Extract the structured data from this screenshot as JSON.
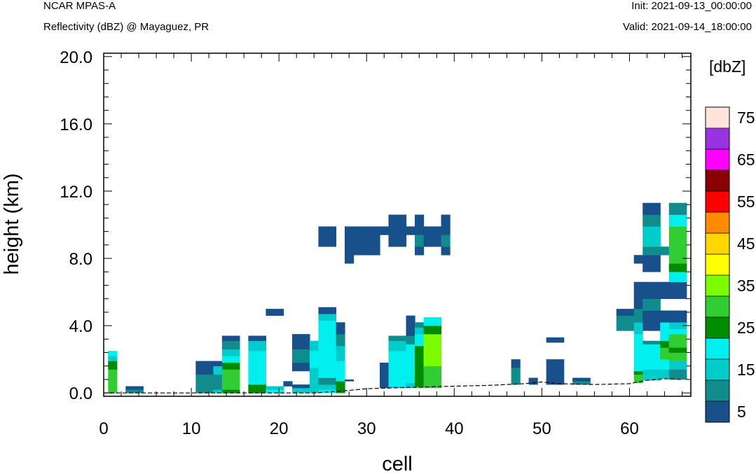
{
  "header": {
    "title": "NCAR MPAS-A",
    "subtitle": "Reflectivity (dBZ) @ Mayaguez, PR",
    "init": "Init: 2021-09-13_00:00:00",
    "valid": "Valid: 2021-09-14_18:00:00"
  },
  "colors": {
    "5": "#18508c",
    "10": "#108c8c",
    "15": "#00cccc",
    "20": "#00f0f0",
    "25": "#008c00",
    "30": "#32cd32",
    "35": "#7cfc00",
    "40": "#ffff00",
    "45": "#ffd700",
    "50": "#ff8c00",
    "55": "#ff0000",
    "60": "#8b0000",
    "65": "#ff00ff",
    "70": "#9932e0",
    "75": "#ffe4dc"
  },
  "chart_data": {
    "type": "heatmap",
    "xlabel": "cell",
    "ylabel": "height (km)",
    "xlim": [
      0,
      67
    ],
    "ylim": [
      -0.2,
      20.2
    ],
    "xticks": [
      0,
      10,
      20,
      30,
      40,
      50,
      60
    ],
    "yticks": [
      0.0,
      4.0,
      8.0,
      12.0,
      16.0,
      20.0
    ],
    "ytick_labels": [
      "0.0",
      "4.0",
      "8.0",
      "12.0",
      "16.0",
      "20.0"
    ],
    "colorbar": {
      "title": "[dbZ]",
      "levels": [
        5,
        10,
        15,
        20,
        25,
        30,
        35,
        40,
        45,
        50,
        55,
        60,
        65,
        70,
        75
      ],
      "labels": [
        "5",
        "15",
        "25",
        "35",
        "45",
        "55",
        "65",
        "75"
      ]
    },
    "terrain": [
      [
        0,
        0
      ],
      [
        24,
        0
      ],
      [
        28,
        0.15
      ],
      [
        30,
        0.25
      ],
      [
        36,
        0.35
      ],
      [
        40,
        0.4
      ],
      [
        44,
        0.45
      ],
      [
        48,
        0.55
      ],
      [
        50,
        0.65
      ],
      [
        52,
        0.55
      ],
      [
        56,
        0.5
      ],
      [
        60,
        0.55
      ],
      [
        62,
        0.75
      ],
      [
        64,
        0.85
      ],
      [
        66,
        0.8
      ]
    ],
    "columns": [
      {
        "x": 1,
        "bins": [
          [
            0,
            1.4,
            30
          ],
          [
            1.4,
            1.9,
            25
          ],
          [
            1.9,
            2.2,
            15
          ],
          [
            2.2,
            2.5,
            20
          ]
        ]
      },
      {
        "x": 3,
        "bins": [
          [
            0,
            0.2,
            10
          ],
          [
            0.2,
            0.4,
            5
          ]
        ]
      },
      {
        "x": 4,
        "bins": [
          [
            0,
            0.2,
            10
          ],
          [
            0.2,
            0.4,
            5
          ]
        ]
      },
      {
        "x": 11,
        "bins": [
          [
            0,
            1.1,
            10
          ],
          [
            1.1,
            1.9,
            5
          ]
        ]
      },
      {
        "x": 12,
        "bins": [
          [
            0,
            1.1,
            10
          ],
          [
            1.1,
            1.9,
            5
          ]
        ]
      },
      {
        "x": 13,
        "bins": [
          [
            0,
            0.2,
            15
          ],
          [
            0.2,
            1.1,
            10
          ],
          [
            1.1,
            1.6,
            15
          ],
          [
            1.6,
            1.9,
            5
          ]
        ]
      },
      {
        "x": 14,
        "bins": [
          [
            0,
            0.2,
            25
          ],
          [
            0.2,
            1.4,
            30
          ],
          [
            1.4,
            1.8,
            25
          ],
          [
            1.8,
            2.2,
            20
          ],
          [
            2.2,
            2.6,
            15
          ],
          [
            2.6,
            3.1,
            10
          ],
          [
            3.1,
            3.4,
            5
          ]
        ]
      },
      {
        "x": 15,
        "bins": [
          [
            0,
            0.2,
            25
          ],
          [
            0.2,
            1.4,
            30
          ],
          [
            1.4,
            1.8,
            25
          ],
          [
            1.8,
            2.2,
            20
          ],
          [
            2.2,
            2.6,
            15
          ],
          [
            2.6,
            3.1,
            10
          ],
          [
            3.1,
            3.4,
            5
          ]
        ]
      },
      {
        "x": 17,
        "bins": [
          [
            0,
            0.5,
            25
          ],
          [
            0.5,
            2.5,
            20
          ],
          [
            2.5,
            3.1,
            15
          ],
          [
            3.1,
            3.4,
            5
          ]
        ]
      },
      {
        "x": 18,
        "bins": [
          [
            0,
            0.5,
            25
          ],
          [
            0.5,
            2.5,
            20
          ],
          [
            2.5,
            3.1,
            15
          ],
          [
            3.1,
            3.4,
            5
          ]
        ]
      },
      {
        "x": 19,
        "bins": [
          [
            0,
            0.2,
            20
          ],
          [
            0.2,
            0.4,
            15
          ],
          [
            4.6,
            5.0,
            5
          ]
        ]
      },
      {
        "x": 20,
        "bins": [
          [
            0,
            0.2,
            20
          ],
          [
            0.2,
            0.4,
            15
          ],
          [
            4.6,
            5.0,
            5
          ]
        ]
      },
      {
        "x": 21,
        "bins": [
          [
            0.4,
            0.7,
            5
          ]
        ]
      },
      {
        "x": 22,
        "bins": [
          [
            0,
            0.3,
            15
          ],
          [
            0.3,
            0.5,
            5
          ],
          [
            1.3,
            1.8,
            5
          ],
          [
            1.8,
            2.6,
            10
          ],
          [
            2.6,
            3.5,
            5
          ]
        ]
      },
      {
        "x": 23,
        "bins": [
          [
            0,
            0.3,
            15
          ],
          [
            0.3,
            0.5,
            5
          ],
          [
            1.3,
            1.8,
            5
          ],
          [
            1.8,
            2.6,
            10
          ],
          [
            2.6,
            3.5,
            5
          ]
        ]
      },
      {
        "x": 24,
        "bins": [
          [
            0,
            1.5,
            15
          ],
          [
            1.5,
            2.5,
            20
          ],
          [
            2.5,
            3.1,
            15
          ]
        ]
      },
      {
        "x": 25,
        "bins": [
          [
            0,
            0.2,
            20
          ],
          [
            0.2,
            0.5,
            15
          ],
          [
            0.5,
            0.9,
            10
          ],
          [
            0.9,
            4.3,
            20
          ],
          [
            4.3,
            4.7,
            15
          ],
          [
            4.7,
            5.1,
            5
          ],
          [
            8.7,
            9.9,
            5
          ]
        ]
      },
      {
        "x": 26,
        "bins": [
          [
            0,
            0.2,
            20
          ],
          [
            0.2,
            0.5,
            15
          ],
          [
            0.5,
            0.9,
            10
          ],
          [
            0.9,
            4.3,
            20
          ],
          [
            4.3,
            4.7,
            15
          ],
          [
            4.7,
            5.1,
            5
          ],
          [
            8.7,
            9.9,
            5
          ]
        ]
      },
      {
        "x": 27,
        "bins": [
          [
            0,
            0.7,
            25
          ],
          [
            0.7,
            1.9,
            20
          ],
          [
            1.9,
            2.8,
            15
          ],
          [
            2.8,
            3.5,
            10
          ],
          [
            3.5,
            4.2,
            5
          ]
        ]
      },
      {
        "x": 28,
        "bins": [
          [
            0.7,
            0.8,
            5
          ],
          [
            7.7,
            9.9,
            5
          ]
        ]
      },
      {
        "x": 29,
        "bins": [
          [
            8.2,
            9.9,
            5
          ]
        ]
      },
      {
        "x": 30,
        "bins": [
          [
            8.2,
            9.9,
            5
          ]
        ]
      },
      {
        "x": 31,
        "bins": [
          [
            8.2,
            9.9,
            5
          ]
        ]
      },
      {
        "x": 32,
        "bins": [
          [
            0.3,
            1.8,
            5
          ],
          [
            9.4,
            9.9,
            5
          ]
        ]
      },
      {
        "x": 33,
        "bins": [
          [
            0.3,
            0.4,
            15
          ],
          [
            0.4,
            2.5,
            20
          ],
          [
            2.5,
            3.1,
            15
          ],
          [
            3.1,
            3.4,
            10
          ],
          [
            8.7,
            10.6,
            5
          ]
        ]
      },
      {
        "x": 34,
        "bins": [
          [
            0.3,
            0.4,
            15
          ],
          [
            0.4,
            2.5,
            20
          ],
          [
            2.5,
            3.1,
            15
          ],
          [
            3.1,
            3.4,
            10
          ],
          [
            8.7,
            10.6,
            5
          ]
        ]
      },
      {
        "x": 35,
        "bins": [
          [
            0.3,
            0.6,
            15
          ],
          [
            0.6,
            2.9,
            20
          ],
          [
            2.9,
            3.4,
            10
          ],
          [
            3.4,
            4.6,
            5
          ],
          [
            9.4,
            9.9,
            5
          ]
        ]
      },
      {
        "x": 36,
        "bins": [
          [
            0.3,
            0.4,
            30
          ],
          [
            0.4,
            2.8,
            25
          ],
          [
            2.8,
            3.5,
            20
          ],
          [
            3.5,
            3.9,
            15
          ],
          [
            3.9,
            4.2,
            10
          ],
          [
            8.2,
            8.7,
            5
          ],
          [
            8.7,
            9.4,
            10
          ],
          [
            9.4,
            10.6,
            5
          ]
        ]
      },
      {
        "x": 37,
        "bins": [
          [
            0.3,
            1.6,
            30
          ],
          [
            1.6,
            3.5,
            35
          ],
          [
            3.5,
            4.0,
            25
          ],
          [
            4.0,
            4.5,
            20
          ],
          [
            8.7,
            9.9,
            5
          ]
        ]
      },
      {
        "x": 38,
        "bins": [
          [
            0.3,
            1.6,
            30
          ],
          [
            1.6,
            3.5,
            35
          ],
          [
            3.5,
            4.0,
            25
          ],
          [
            4.0,
            4.5,
            20
          ],
          [
            8.7,
            9.9,
            5
          ]
        ]
      },
      {
        "x": 39,
        "bins": [
          [
            8.2,
            8.7,
            5
          ],
          [
            8.7,
            9.4,
            10
          ],
          [
            9.4,
            10.6,
            5
          ]
        ]
      },
      {
        "x": 47,
        "bins": [
          [
            0.5,
            1.5,
            10
          ],
          [
            1.5,
            2.0,
            5
          ]
        ]
      },
      {
        "x": 49,
        "bins": [
          [
            0.5,
            0.9,
            5
          ]
        ]
      },
      {
        "x": 51,
        "bins": [
          [
            0.5,
            2.0,
            5
          ],
          [
            3.0,
            3.3,
            5
          ]
        ]
      },
      {
        "x": 52,
        "bins": [
          [
            0.5,
            2.0,
            5
          ],
          [
            3.0,
            3.3,
            5
          ]
        ]
      },
      {
        "x": 54,
        "bins": [
          [
            0.5,
            0.7,
            10
          ],
          [
            0.7,
            0.9,
            5
          ]
        ]
      },
      {
        "x": 55,
        "bins": [
          [
            0.5,
            0.7,
            10
          ],
          [
            0.7,
            0.9,
            5
          ]
        ]
      },
      {
        "x": 59,
        "bins": [
          [
            3.7,
            4.6,
            10
          ],
          [
            4.6,
            5.0,
            5
          ]
        ]
      },
      {
        "x": 60,
        "bins": [
          [
            3.7,
            4.6,
            10
          ],
          [
            4.6,
            5.0,
            5
          ]
        ]
      },
      {
        "x": 61,
        "bins": [
          [
            0.6,
            1.1,
            30
          ],
          [
            1.1,
            1.3,
            25
          ],
          [
            1.3,
            3.5,
            20
          ],
          [
            3.5,
            4.2,
            15
          ],
          [
            4.2,
            5.0,
            10
          ],
          [
            5.0,
            6.6,
            5
          ],
          [
            7.7,
            8.2,
            5
          ]
        ]
      },
      {
        "x": 62,
        "bins": [
          [
            0.75,
            1.4,
            15
          ],
          [
            1.4,
            2.9,
            20
          ],
          [
            2.9,
            3.1,
            10
          ],
          [
            3.7,
            4.9,
            5
          ],
          [
            4.9,
            5.6,
            10
          ],
          [
            5.6,
            6.6,
            5
          ],
          [
            7.2,
            8.2,
            5
          ],
          [
            8.2,
            8.7,
            10
          ],
          [
            8.7,
            9.9,
            15
          ],
          [
            9.9,
            10.6,
            10
          ],
          [
            10.6,
            11.3,
            5
          ]
        ]
      },
      {
        "x": 63,
        "bins": [
          [
            0.75,
            1.4,
            15
          ],
          [
            1.4,
            2.9,
            20
          ],
          [
            2.9,
            3.1,
            10
          ],
          [
            3.7,
            4.9,
            5
          ],
          [
            4.9,
            5.6,
            10
          ],
          [
            5.6,
            6.6,
            5
          ],
          [
            7.2,
            8.2,
            5
          ],
          [
            8.2,
            8.7,
            10
          ],
          [
            8.7,
            9.9,
            15
          ],
          [
            9.9,
            10.6,
            10
          ],
          [
            10.6,
            11.3,
            5
          ]
        ]
      },
      {
        "x": 64,
        "bins": [
          [
            0.85,
            1.4,
            15
          ],
          [
            1.4,
            2.0,
            20
          ],
          [
            2.0,
            2.7,
            30
          ],
          [
            2.7,
            3.1,
            25
          ],
          [
            3.1,
            4.2,
            20
          ],
          [
            4.2,
            4.9,
            5
          ],
          [
            5.6,
            6.6,
            5
          ],
          [
            8.2,
            8.7,
            10
          ]
        ]
      },
      {
        "x": 65,
        "bins": [
          [
            0.8,
            1.4,
            10
          ],
          [
            1.4,
            1.9,
            15
          ],
          [
            1.9,
            2.4,
            30
          ],
          [
            2.4,
            2.7,
            25
          ],
          [
            2.7,
            3.5,
            30
          ],
          [
            3.5,
            3.8,
            20
          ],
          [
            3.8,
            4.2,
            15
          ],
          [
            4.2,
            4.9,
            5
          ],
          [
            5.6,
            6.6,
            5
          ],
          [
            6.6,
            7.2,
            20
          ],
          [
            7.2,
            7.7,
            25
          ],
          [
            7.7,
            9.9,
            30
          ],
          [
            9.9,
            10.6,
            20
          ],
          [
            10.6,
            11.3,
            10
          ]
        ]
      },
      {
        "x": 66,
        "bins": [
          [
            0.8,
            1.4,
            10
          ],
          [
            1.4,
            1.9,
            15
          ],
          [
            1.9,
            2.4,
            30
          ],
          [
            2.4,
            2.7,
            25
          ],
          [
            2.7,
            3.5,
            30
          ],
          [
            3.5,
            3.8,
            20
          ],
          [
            3.8,
            4.2,
            15
          ],
          [
            4.2,
            4.9,
            5
          ],
          [
            5.6,
            6.6,
            5
          ],
          [
            6.6,
            7.2,
            20
          ],
          [
            7.2,
            7.7,
            25
          ],
          [
            7.7,
            9.9,
            30
          ],
          [
            9.9,
            10.6,
            20
          ],
          [
            10.6,
            11.3,
            10
          ]
        ]
      }
    ]
  }
}
